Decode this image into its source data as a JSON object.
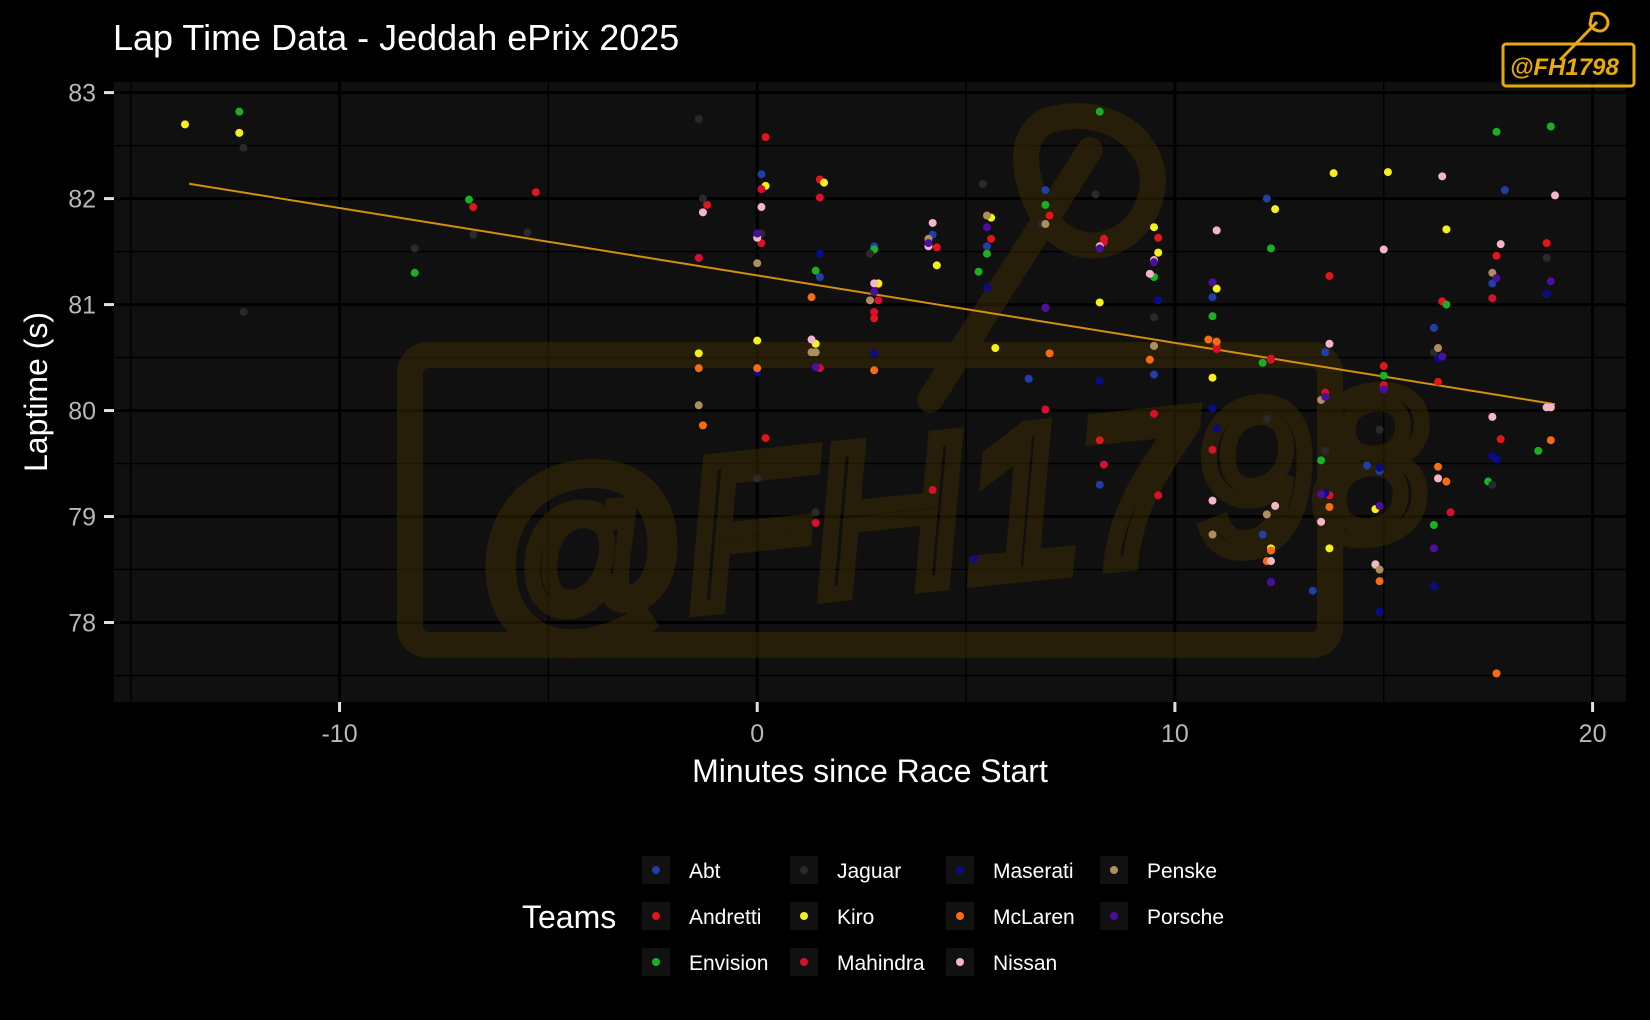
{
  "watermark": {
    "text": "@FH1798"
  },
  "legend": {
    "title": "Teams",
    "items": [
      {
        "label": "Abt",
        "color": "#1f3fa6"
      },
      {
        "label": "Andretti",
        "color": "#e0161b"
      },
      {
        "label": "Envision",
        "color": "#1bb024"
      },
      {
        "label": "Jaguar",
        "color": "#2a2a2a"
      },
      {
        "label": "Kiro",
        "color": "#f4f21a"
      },
      {
        "label": "Mahindra",
        "color": "#d8102d"
      },
      {
        "label": "Maserati",
        "color": "#0b0c85"
      },
      {
        "label": "McLaren",
        "color": "#f76c12"
      },
      {
        "label": "Nissan",
        "color": "#f4b5c9"
      },
      {
        "label": "Penske",
        "color": "#b08d5c"
      },
      {
        "label": "Porsche",
        "color": "#4a0f9c"
      }
    ]
  },
  "colors": {
    "background": "#000000",
    "panel": "#101010",
    "grid_major": "#000000",
    "trend": "#d4900e",
    "watermark": "#5c4206",
    "logo": "#e8a90a"
  },
  "chart_data": {
    "type": "scatter",
    "title": "Lap Time Data - Jeddah ePrix 2025",
    "xlabel": "Minutes since Race Start",
    "ylabel": "Laptime (s)",
    "xlim": [
      -15.4,
      20.8
    ],
    "ylim": [
      77.25,
      83.1
    ],
    "x_ticks": [
      -10,
      0,
      10,
      20
    ],
    "x_tick_labels": [
      "-10",
      "0",
      "10",
      "20"
    ],
    "y_ticks": [
      78,
      79,
      80,
      81,
      82,
      83
    ],
    "y_tick_labels": [
      "78",
      "79",
      "80",
      "81",
      "82",
      "83"
    ],
    "grid": true,
    "legend_position": "bottom",
    "trend_line": {
      "x": [
        -13.6,
        19.1
      ],
      "y": [
        82.14,
        80.06
      ]
    },
    "series": [
      {
        "name": "Abt",
        "x": [
          0.1,
          1.5,
          2.8,
          4.2,
          5.5,
          6.9,
          8.2,
          9.5,
          10.9,
          12.2,
          13.6,
          14.9,
          16.2,
          17.6,
          18.9,
          6.5,
          14.6,
          17.9,
          12.1,
          13.3
        ],
        "y": [
          82.23,
          81.26,
          81.55,
          81.66,
          81.55,
          82.08,
          79.3,
          80.34,
          81.07,
          82.0,
          80.55,
          79.43,
          80.78,
          81.2,
          81.1,
          80.3,
          79.48,
          82.08,
          78.83,
          78.3
        ]
      },
      {
        "name": "Andretti",
        "x": [
          -6.8,
          -5.3,
          -1.2,
          0.2,
          1.5,
          2.9,
          4.3,
          5.6,
          7.0,
          8.3,
          9.6,
          11.0,
          12.3,
          13.7,
          15.0,
          16.4,
          17.7,
          18.9,
          0.2,
          2.8,
          8.2,
          15.0,
          16.3,
          17.8
        ],
        "y": [
          81.92,
          82.06,
          81.94,
          82.58,
          82.18,
          81.19,
          81.54,
          81.62,
          81.84,
          81.62,
          81.63,
          80.6,
          80.48,
          81.27,
          80.42,
          81.03,
          81.46,
          81.58,
          79.74,
          80.87,
          79.72,
          80.22,
          80.27,
          79.73
        ]
      },
      {
        "name": "Envision",
        "x": [
          -12.4,
          -8.2,
          -6.9,
          2.8,
          5.5,
          6.9,
          8.2,
          9.5,
          10.9,
          12.3,
          13.5,
          14.8,
          15.0,
          16.5,
          17.7,
          19.0,
          1.4,
          5.3,
          12.1,
          16.2,
          17.5,
          18.7
        ],
        "y": [
          82.82,
          81.3,
          81.99,
          81.52,
          81.48,
          81.94,
          82.82,
          81.26,
          80.89,
          81.53,
          79.53,
          78.54,
          80.33,
          81.0,
          82.63,
          82.68,
          81.32,
          81.31,
          80.45,
          78.92,
          79.33,
          79.62
        ]
      },
      {
        "name": "Jaguar",
        "x": [
          -12.3,
          -8.2,
          -6.8,
          -5.5,
          -1.4,
          0.1,
          1.4,
          2.7,
          4.1,
          5.4,
          6.8,
          8.1,
          9.5,
          10.9,
          12.2,
          13.6,
          14.9,
          16.2,
          17.6,
          18.9,
          -1.3,
          -12.3,
          0.0
        ],
        "y": [
          82.48,
          81.53,
          81.66,
          81.68,
          82.75,
          81.67,
          79.04,
          81.48,
          81.6,
          82.14,
          81.76,
          82.04,
          80.88,
          80.66,
          79.92,
          79.62,
          79.82,
          80.55,
          79.3,
          81.44,
          82.0,
          80.93,
          79.36
        ]
      },
      {
        "name": "Kiro",
        "x": [
          -13.7,
          -12.4,
          -1.4,
          0.0,
          0.2,
          1.4,
          1.6,
          2.9,
          4.3,
          5.6,
          5.7,
          6.9,
          8.2,
          9.5,
          9.6,
          10.9,
          11.0,
          12.3,
          12.4,
          13.7,
          13.8,
          15.1,
          16.5,
          14.8
        ],
        "y": [
          82.7,
          82.62,
          80.54,
          80.66,
          82.12,
          80.63,
          82.15,
          81.2,
          81.37,
          81.82,
          80.59,
          80.97,
          81.02,
          81.73,
          81.49,
          80.31,
          81.15,
          78.7,
          81.9,
          78.7,
          82.24,
          82.25,
          81.71,
          79.07
        ]
      },
      {
        "name": "Mahindra",
        "x": [
          -1.4,
          0.1,
          1.5,
          1.5,
          2.8,
          4.2,
          6.9,
          8.3,
          9.5,
          9.6,
          10.9,
          11.0,
          13.6,
          15.0,
          16.6,
          17.6,
          0.1,
          1.4,
          2.9,
          8.3,
          12.3,
          13.7
        ],
        "y": [
          81.44,
          81.58,
          82.01,
          80.4,
          80.93,
          79.25,
          80.01,
          79.49,
          79.97,
          79.2,
          79.63,
          80.58,
          80.17,
          80.24,
          79.04,
          81.06,
          82.09,
          78.94,
          81.04,
          81.59,
          80.49,
          79.2
        ]
      },
      {
        "name": "Maserati",
        "x": [
          0.0,
          1.5,
          2.8,
          4.1,
          5.5,
          6.9,
          8.2,
          9.6,
          10.9,
          12.3,
          13.6,
          14.9,
          16.2,
          17.6,
          18.9,
          5.2,
          11.0,
          14.9,
          16.3,
          17.7
        ],
        "y": [
          80.36,
          81.48,
          80.54,
          81.55,
          81.16,
          80.97,
          80.28,
          81.04,
          80.02,
          78.39,
          79.22,
          78.1,
          78.34,
          79.57,
          81.1,
          78.6,
          79.83,
          79.46,
          80.49,
          79.54
        ]
      },
      {
        "name": "McLaren",
        "x": [
          -1.3,
          -1.4,
          0.0,
          1.3,
          2.8,
          9.4,
          10.8,
          12.3,
          13.7,
          14.9,
          16.3,
          16.5,
          17.7,
          19.0,
          7.0,
          12.2,
          9.5,
          11.0
        ],
        "y": [
          79.86,
          80.4,
          80.4,
          81.07,
          80.38,
          80.48,
          80.67,
          78.68,
          79.09,
          78.39,
          79.47,
          79.33,
          77.52,
          79.72,
          80.54,
          78.58,
          80.61,
          80.65
        ]
      },
      {
        "name": "Nissan",
        "x": [
          -1.3,
          0.1,
          1.3,
          2.8,
          4.2,
          9.5,
          10.9,
          12.4,
          13.7,
          15.0,
          16.4,
          17.6,
          19.0,
          19.1,
          0.0,
          8.2,
          11.0,
          12.3,
          13.5,
          14.8,
          16.3,
          17.8,
          4.1,
          9.4,
          18.9
        ],
        "y": [
          81.87,
          81.92,
          80.67,
          81.2,
          81.77,
          81.42,
          79.15,
          79.1,
          80.63,
          81.52,
          82.21,
          79.94,
          80.03,
          82.03,
          81.63,
          81.55,
          81.7,
          78.58,
          78.95,
          78.55,
          79.36,
          81.57,
          81.55,
          81.29,
          80.03
        ]
      },
      {
        "name": "Penske",
        "x": [
          -1.4,
          0.0,
          1.4,
          2.7,
          4.1,
          5.5,
          6.9,
          9.5,
          10.9,
          12.2,
          13.5,
          16.3,
          17.6,
          1.3,
          14.9
        ],
        "y": [
          80.05,
          81.39,
          80.55,
          81.04,
          81.62,
          81.84,
          81.76,
          80.61,
          78.83,
          79.02,
          80.1,
          80.59,
          81.3,
          80.55,
          78.5
        ]
      },
      {
        "name": "Porsche",
        "x": [
          0.0,
          1.4,
          2.8,
          4.1,
          5.5,
          6.9,
          8.2,
          9.5,
          10.9,
          12.3,
          13.6,
          14.9,
          16.2,
          17.7,
          19.0,
          13.5,
          15.0,
          16.4
        ],
        "y": [
          81.67,
          80.41,
          81.12,
          81.58,
          81.73,
          80.97,
          81.53,
          81.4,
          81.21,
          78.38,
          80.13,
          79.1,
          78.7,
          81.25,
          81.22,
          79.21,
          80.2,
          80.51
        ]
      }
    ]
  }
}
